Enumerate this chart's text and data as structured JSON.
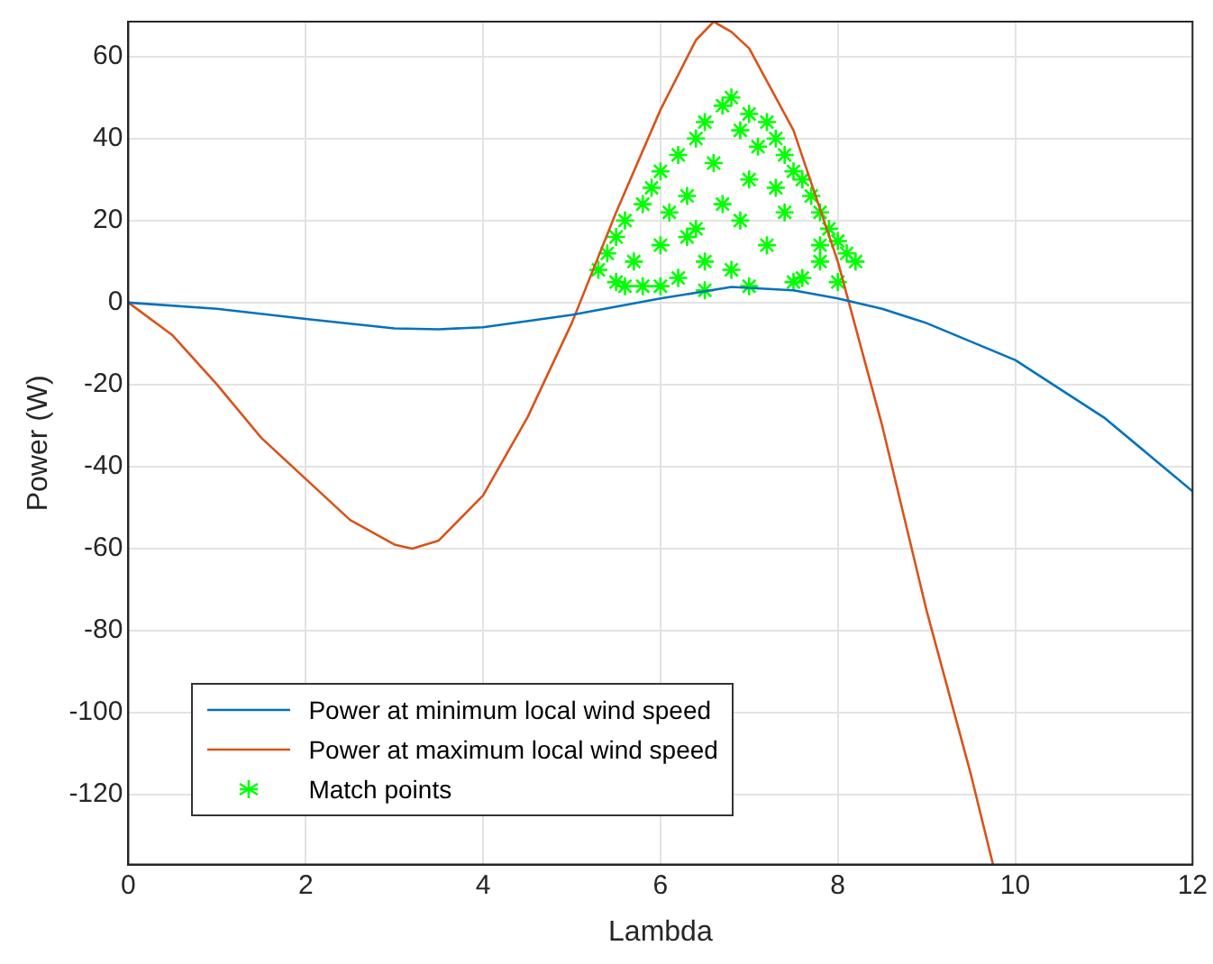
{
  "chart_data": {
    "type": "line",
    "xlabel": "Lambda",
    "ylabel": "Power (W)",
    "xlim": [
      0,
      12
    ],
    "xticks": [
      0,
      2,
      4,
      6,
      8,
      10,
      12
    ],
    "ylim": [
      -137,
      68.5
    ],
    "yticks": [
      -120,
      -100,
      -80,
      -60,
      -40,
      -20,
      0,
      20,
      40,
      60
    ],
    "grid": true,
    "legend": "bottom left",
    "series": [
      {
        "name": "Power at minimum local wind speed",
        "color": "#0072bd",
        "marker": "none",
        "x": [
          0,
          1,
          2,
          3,
          3.5,
          4,
          5,
          6,
          6.8,
          7.5,
          8,
          8.5,
          9,
          10,
          11,
          12
        ],
        "values": [
          0,
          -1.5,
          -4,
          -6.3,
          -6.5,
          -6,
          -3,
          1,
          3.8,
          3,
          1,
          -1.5,
          -5,
          -14,
          -28,
          -46
        ]
      },
      {
        "name": "Power at maximum local wind speed",
        "color": "#d95319",
        "marker": "none",
        "x": [
          0,
          0.5,
          1,
          1.5,
          2,
          2.5,
          3,
          3.2,
          3.5,
          4,
          4.5,
          5,
          5.5,
          6,
          6.4,
          6.6,
          6.8,
          7,
          7.5,
          8,
          8.5,
          9,
          9.5,
          9.75
        ],
        "values": [
          0,
          -8,
          -20,
          -33,
          -43,
          -53,
          -59,
          -60,
          -58,
          -47,
          -28,
          -5,
          22,
          47,
          64,
          68.5,
          66,
          62,
          42,
          10,
          -30,
          -75,
          -115,
          -137
        ]
      },
      {
        "name": "Match points",
        "color": "#00ff00",
        "type": "scatter",
        "marker": "cross",
        "x": [
          5.3,
          5.4,
          5.5,
          5.5,
          5.6,
          5.7,
          5.8,
          5.8,
          5.9,
          6.0,
          6.0,
          6.1,
          6.2,
          6.2,
          6.3,
          6.4,
          6.4,
          6.5,
          6.5,
          6.6,
          6.7,
          6.7,
          6.8,
          6.8,
          6.9,
          7.0,
          7.0,
          7.1,
          7.2,
          7.2,
          7.3,
          7.4,
          7.4,
          7.5,
          7.6,
          7.6,
          7.7,
          7.8,
          7.8,
          7.9,
          8.0,
          8.0,
          8.1,
          8.2,
          6.0,
          6.5,
          7.0,
          7.5,
          5.6,
          6.3,
          6.9,
          7.3,
          7.8
        ],
        "values": [
          8,
          12,
          5,
          16,
          20,
          10,
          24,
          4,
          28,
          32,
          14,
          22,
          36,
          6,
          26,
          40,
          18,
          44,
          10,
          34,
          48,
          24,
          50,
          8,
          42,
          46,
          30,
          38,
          44,
          14,
          40,
          36,
          22,
          32,
          30,
          6,
          26,
          22,
          10,
          18,
          15,
          5,
          12,
          10,
          4,
          3,
          4,
          5,
          4,
          16,
          20,
          28,
          14
        ]
      }
    ]
  }
}
